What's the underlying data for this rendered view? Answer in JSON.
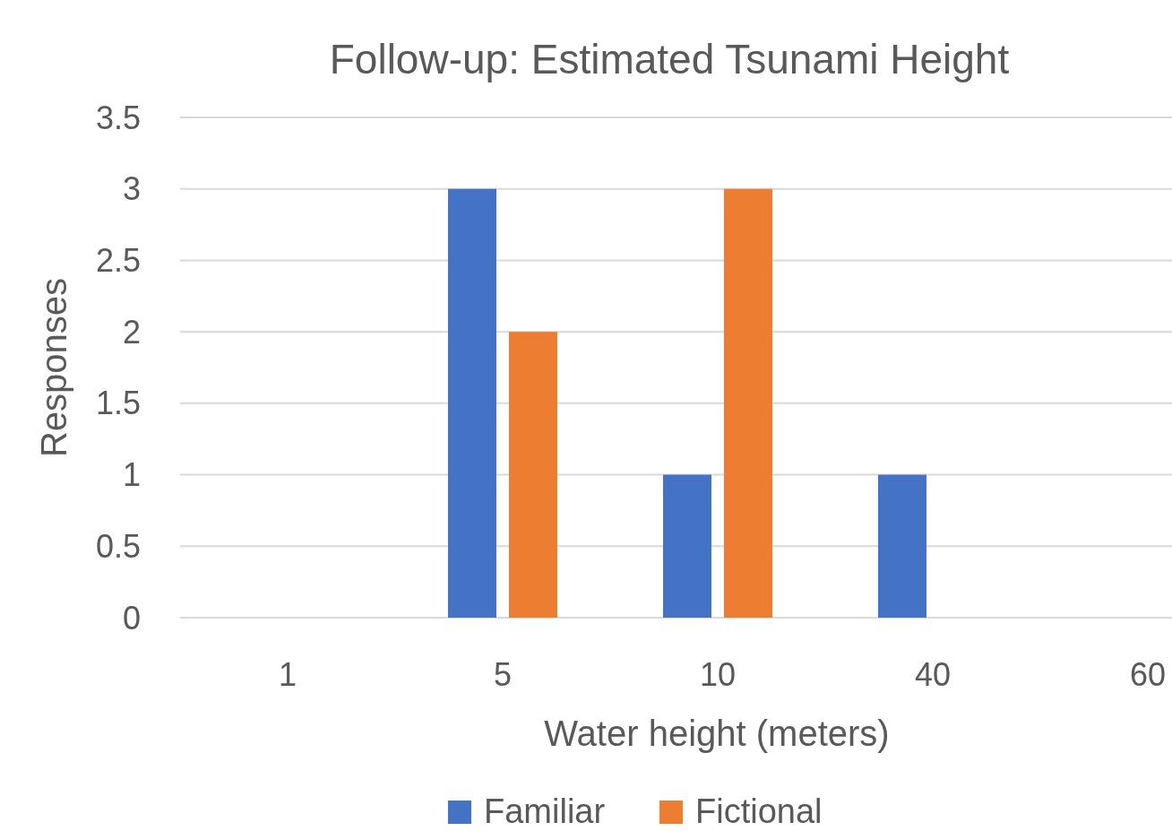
{
  "chart_data": {
    "type": "bar",
    "title": "Follow-up: Estimated Tsunami Height",
    "xlabel": "Water height (meters)",
    "ylabel": "Responses",
    "categories": [
      "1",
      "5",
      "10",
      "40",
      "60"
    ],
    "series": [
      {
        "name": "Familiar",
        "color": "#4472c4",
        "values": [
          0,
          3,
          1,
          1,
          0
        ]
      },
      {
        "name": "Fictional",
        "color": "#ed7d31",
        "values": [
          0,
          2,
          3,
          0,
          0
        ]
      }
    ],
    "ylim": [
      0,
      3.5
    ],
    "yticks": [
      0,
      0.5,
      1,
      1.5,
      2,
      2.5,
      3,
      3.5
    ],
    "grid": "y",
    "legend": "bottom"
  }
}
